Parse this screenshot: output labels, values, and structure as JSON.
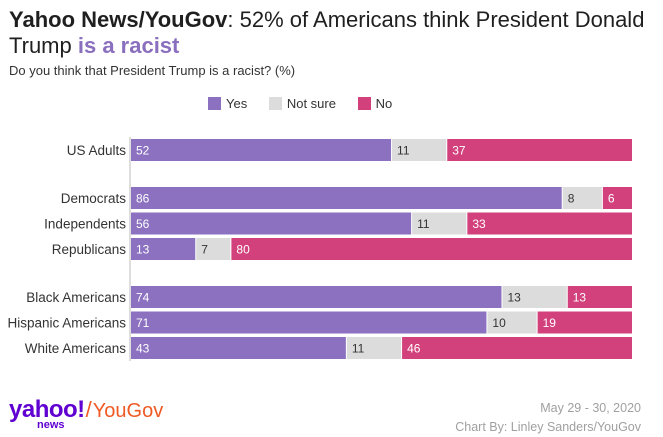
{
  "header": {
    "title_bold": "Yahoo News/YouGov",
    "title_plain": ": 52% of Americans think President Donald Trump ",
    "title_highlight": "is a racist",
    "subtitle": "Do you think that President Trump is a racist? (%)"
  },
  "legend": [
    "Yes",
    "Not sure",
    "No"
  ],
  "colors": {
    "Yes": "#8b71c0",
    "Not sure": "#dcdcdc",
    "No": "#d2417c"
  },
  "chart_data": {
    "type": "bar",
    "orientation": "horizontal",
    "stacked": true,
    "title": "Yahoo News/YouGov: 52% of Americans think President Donald Trump is a racist",
    "subtitle": "Do you think that President Trump is a racist? (%)",
    "xlabel": "",
    "ylabel": "",
    "xlim": [
      0,
      100
    ],
    "legend_position": "top",
    "categories": [
      "US Adults",
      "Democrats",
      "Independents",
      "Republicans",
      "Black Americans",
      "Hispanic Americans",
      "White Americans"
    ],
    "groups": [
      [
        "US Adults"
      ],
      [
        "Democrats",
        "Independents",
        "Republicans"
      ],
      [
        "Black Americans",
        "Hispanic Americans",
        "White Americans"
      ]
    ],
    "series": [
      {
        "name": "Yes",
        "values": [
          52,
          86,
          56,
          13,
          74,
          71,
          43
        ]
      },
      {
        "name": "Not sure",
        "values": [
          11,
          8,
          11,
          7,
          13,
          10,
          11
        ]
      },
      {
        "name": "No",
        "values": [
          37,
          6,
          33,
          80,
          13,
          19,
          46
        ]
      }
    ]
  },
  "branding": {
    "yahoo": "yahoo!",
    "news": "news",
    "separator": "/",
    "yougov": "YouGov"
  },
  "footer": {
    "date": "May 29 - 30, 2020",
    "credit": "Chart By: Linley Sanders/YouGov"
  }
}
